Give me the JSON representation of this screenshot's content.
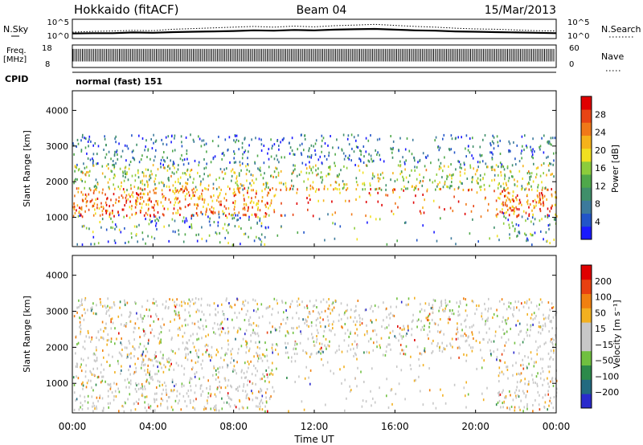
{
  "header": {
    "station": "Hokkaido (fitACF)",
    "beam": "Beam 04",
    "date": "15/Mar/2013"
  },
  "colors": {
    "power_scale": [
      "#1a1aff",
      "#2255c8",
      "#3c7a9c",
      "#3f8f6a",
      "#4fa84a",
      "#8ccc3c",
      "#f0e020",
      "#f5b21a",
      "#f07818",
      "#e84414",
      "#e00000"
    ],
    "velocity_scale": [
      "#2a2acc",
      "#226a80",
      "#2c8a4a",
      "#70c040",
      "#c8c8c8",
      "#c8c8c8",
      "#f2b020",
      "#f08010",
      "#e84010",
      "#e00000"
    ],
    "ground_scatter": "#bebebe"
  },
  "chart_data": [
    {
      "id": "nsky-panel",
      "type": "line",
      "left_label": "N.Sky",
      "right_label": "N.Search",
      "left_ticks": [
        "10^5",
        "10^0"
      ],
      "right_ticks": [
        "10^5",
        "10^0"
      ],
      "x": [
        0,
        1,
        2,
        3,
        4,
        5,
        6,
        7,
        8,
        9,
        10,
        11,
        12,
        13,
        14,
        15,
        16,
        17,
        18,
        19,
        20,
        21,
        22,
        23,
        24
      ],
      "n_sky": [
        1.2,
        1.3,
        1.3,
        1.5,
        1.4,
        1.6,
        1.7,
        1.8,
        1.9,
        2.1,
        2.0,
        2.2,
        2.1,
        2.3,
        2.4,
        2.5,
        2.3,
        2.1,
        2.0,
        1.8,
        1.7,
        1.6,
        1.5,
        1.4,
        1.3
      ],
      "n_search": [
        1.6,
        1.8,
        1.9,
        2.1,
        2.0,
        2.4,
        2.6,
        2.8,
        3.0,
        3.2,
        3.0,
        3.3,
        3.1,
        3.4,
        3.6,
        3.8,
        3.5,
        3.2,
        3.0,
        2.7,
        2.5,
        2.4,
        2.2,
        2.0,
        1.9
      ],
      "ylim": [
        0,
        5
      ]
    },
    {
      "id": "freq-panel",
      "type": "line",
      "left_label": "Freq.",
      "left_unit": "[MHz]",
      "right_label": "Nave",
      "left_ticks": [
        "18",
        "8"
      ],
      "right_ticks": [
        "60",
        "0"
      ],
      "ylim": [
        8,
        18
      ],
      "freq_values": [
        10.5,
        16.5
      ]
    },
    {
      "id": "cpid-panel",
      "type": "table",
      "label": "CPID",
      "program": "normal (fast) 151"
    },
    {
      "id": "power-panel",
      "type": "heatmap",
      "ylabel": "Slant Range [km]",
      "yticks": [
        "4000",
        "3000",
        "2000",
        "1000"
      ],
      "ytick_values": [
        4000,
        3000,
        2000,
        1000
      ],
      "ylim": [
        180,
        4550
      ],
      "xlim": [
        0,
        24
      ],
      "colorbar_label": "Power [dB]",
      "colorbar_ticks": [
        "28",
        "24",
        "20",
        "16",
        "12",
        "8",
        "4"
      ],
      "colorbar_range": [
        0,
        32
      ]
    },
    {
      "id": "velocity-panel",
      "type": "heatmap",
      "ylabel": "Slant Range [km]",
      "yticks": [
        "4000",
        "3000",
        "2000",
        "1000"
      ],
      "ytick_values": [
        4000,
        3000,
        2000,
        1000
      ],
      "ylim": [
        180,
        4550
      ],
      "xlim": [
        0,
        24
      ],
      "colorbar_label": "Velocity [m s⁻¹]",
      "colorbar_ticks": [
        "200",
        "100",
        "50",
        "15",
        "−15",
        "−50",
        "−100",
        "−200"
      ]
    }
  ],
  "x_axis": {
    "label": "Time UT",
    "ticks": [
      "00:00",
      "04:00",
      "08:00",
      "12:00",
      "16:00",
      "20:00",
      "00:00"
    ],
    "tick_hours": [
      0,
      4,
      8,
      12,
      16,
      20,
      24
    ]
  }
}
